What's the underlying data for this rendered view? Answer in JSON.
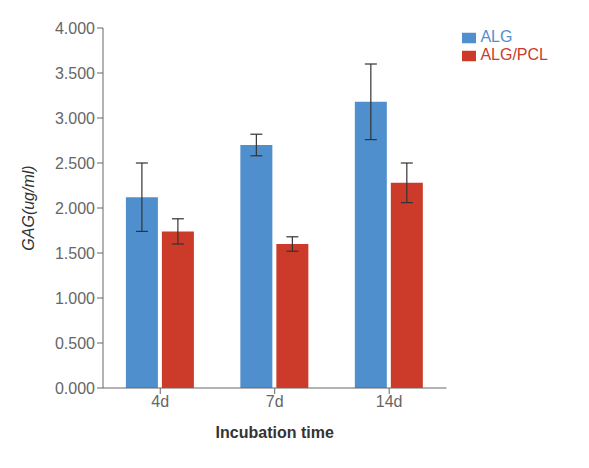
{
  "chart_data": {
    "type": "bar",
    "categories": [
      "4d",
      "7d",
      "14d"
    ],
    "series": [
      {
        "name": "ALG",
        "color": "#4f8fce",
        "values": [
          2.12,
          2.7,
          3.18
        ],
        "errors": [
          0.38,
          0.12,
          0.42
        ]
      },
      {
        "name": "ALG/PCL",
        "color": "#cc3a2a",
        "values": [
          1.74,
          1.6,
          2.28
        ],
        "errors": [
          0.14,
          0.08,
          0.22
        ]
      }
    ],
    "xlabel": "Incubation time",
    "ylabel": "GAG(ug/ml)",
    "ylim": [
      0,
      4.0
    ],
    "yticks": [
      {
        "value": 0.0,
        "label": "0.000"
      },
      {
        "value": 0.5,
        "label": "0.500"
      },
      {
        "value": 1.0,
        "label": "1.000"
      },
      {
        "value": 1.5,
        "label": "1.500"
      },
      {
        "value": 2.0,
        "label": "2.000"
      },
      {
        "value": 2.5,
        "label": "2.500"
      },
      {
        "value": 3.0,
        "label": "3.000"
      },
      {
        "value": 3.5,
        "label": "3.500"
      },
      {
        "value": 4.0,
        "label": "4.000"
      }
    ],
    "grid": false,
    "legend": "right"
  }
}
